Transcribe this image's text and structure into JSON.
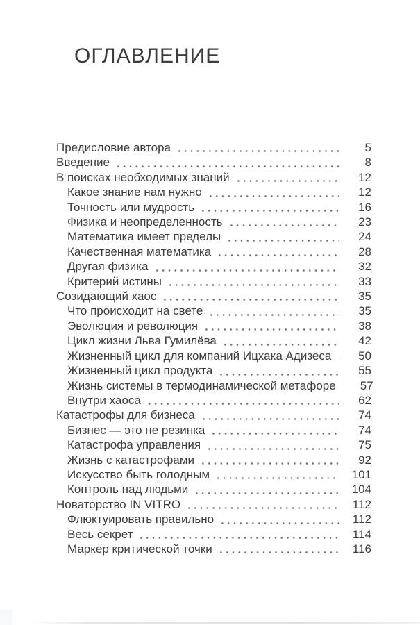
{
  "page": {
    "title": "ОГЛАВЛЕНИЕ"
  },
  "toc": {
    "entries": [
      {
        "label": "Предисловие автора",
        "page": "5",
        "level": 0
      },
      {
        "label": "Введение",
        "page": "8",
        "level": 0
      },
      {
        "label": "В поисках необходимых знаний",
        "page": "12",
        "level": 0
      },
      {
        "label": "Какое знание нам нужно",
        "page": "12",
        "level": 1
      },
      {
        "label": "Точность или мудрость",
        "page": "16",
        "level": 1
      },
      {
        "label": "Физика и неопределенность",
        "page": "23",
        "level": 1
      },
      {
        "label": "Математика имеет пределы",
        "page": "24",
        "level": 1
      },
      {
        "label": "Качественная математика",
        "page": "28",
        "level": 1
      },
      {
        "label": "Другая физика",
        "page": "32",
        "level": 1
      },
      {
        "label": "Критерий истины",
        "page": "33",
        "level": 1
      },
      {
        "label": "Созидающий хаос",
        "page": "35",
        "level": 0
      },
      {
        "label": "Что происходит на свете",
        "page": "35",
        "level": 1
      },
      {
        "label": "Эволюция и революция",
        "page": "38",
        "level": 1
      },
      {
        "label": "Цикл жизни Льва Гумилёва",
        "page": "42",
        "level": 1
      },
      {
        "label": "Жизненный цикл для компаний Ицхака Адизеса",
        "page": "50",
        "level": 1
      },
      {
        "label": "Жизненный цикл продукта",
        "page": "55",
        "level": 1
      },
      {
        "label": "Жизнь системы в термодинамической метафоре",
        "page": "57",
        "level": 1
      },
      {
        "label": "Внутри хаоса",
        "page": "62",
        "level": 1
      },
      {
        "label": "Катастрофы для бизнеса",
        "page": "74",
        "level": 0
      },
      {
        "label": "Бизнес — это не резинка",
        "page": "74",
        "level": 1
      },
      {
        "label": "Катастрофа управления",
        "page": "75",
        "level": 1
      },
      {
        "label": "Жизнь с катастрофами",
        "page": "92",
        "level": 1
      },
      {
        "label": "Искусство быть голодным",
        "page": "101",
        "level": 1
      },
      {
        "label": "Контроль над людьми",
        "page": "104",
        "level": 1
      },
      {
        "label": "Новаторство IN VITRO",
        "page": "112",
        "level": 0
      },
      {
        "label": "Флюктуировать правильно",
        "page": "112",
        "level": 1
      },
      {
        "label": "Весь секрет",
        "page": "114",
        "level": 1
      },
      {
        "label": "Маркер критической точки",
        "page": "116",
        "level": 1
      }
    ]
  },
  "colors": {
    "text": "#3e3e3e",
    "dot_leader": "#6f6f6f",
    "page_background": "#ffffff",
    "edge_shadow": "#c3c8cd"
  }
}
